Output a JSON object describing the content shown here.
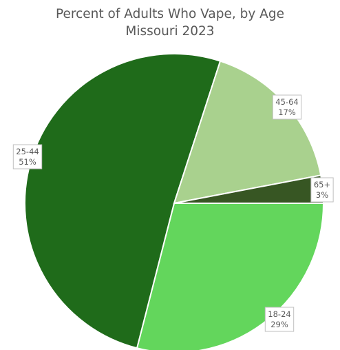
{
  "chart_data": {
    "type": "pie",
    "title": "Percent of Adults Who Vape, by Age",
    "subtitle": "Missouri 2023",
    "slices": [
      {
        "label": "18-24",
        "value": 29,
        "display": "29%",
        "color": "#63d65c"
      },
      {
        "label": "25-44",
        "value": 51,
        "display": "51%",
        "color": "#1f6b1a"
      },
      {
        "label": "45-64",
        "value": 17,
        "display": "17%",
        "color": "#a9d18e"
      },
      {
        "label": "65+",
        "value": 3,
        "display": "3%",
        "color": "#375623"
      }
    ]
  }
}
